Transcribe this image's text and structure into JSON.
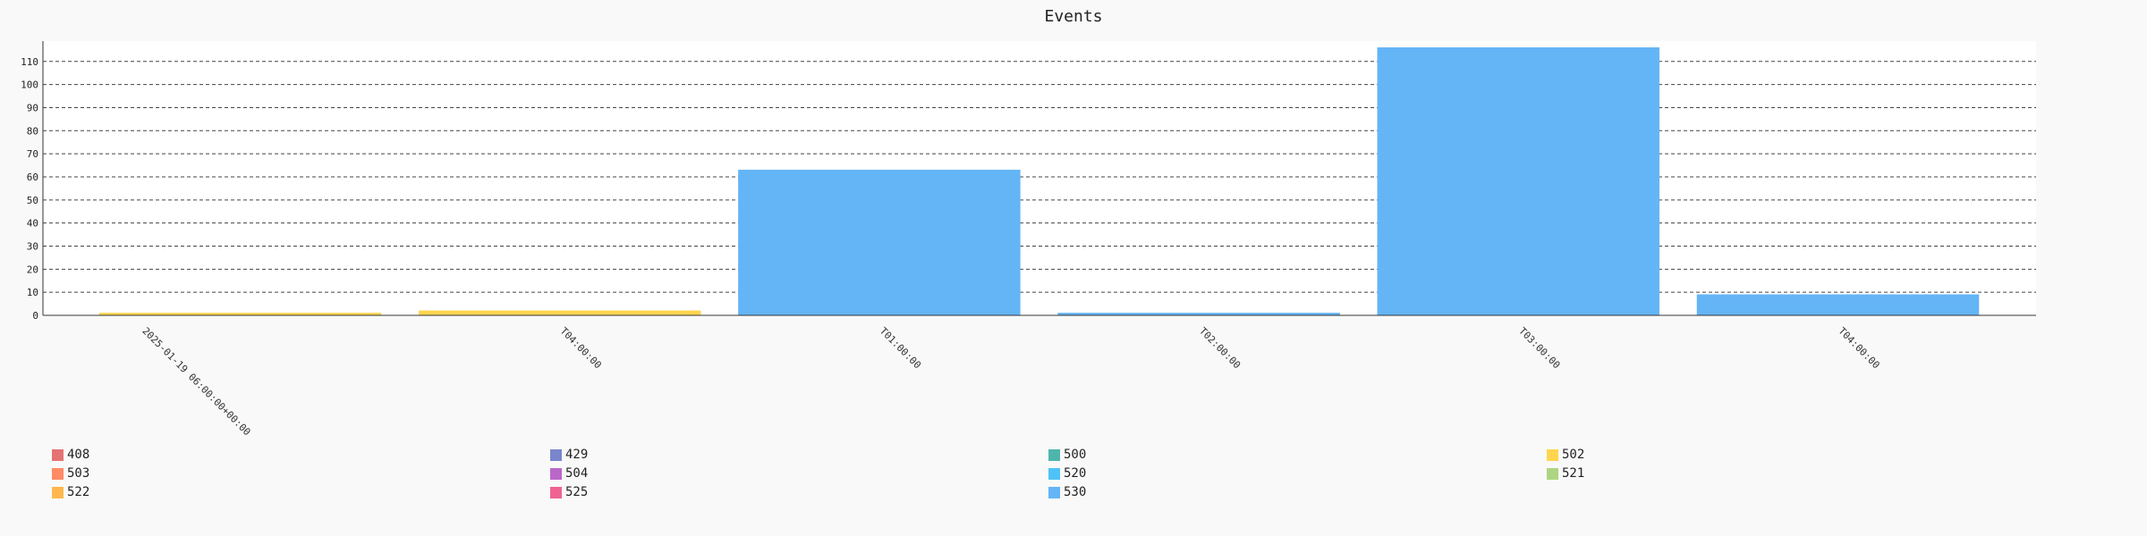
{
  "chart_data": {
    "type": "bar",
    "title": "Events",
    "xlabel": "",
    "ylabel": "",
    "categories": [
      "2025-01-19 06:00:00+00:00",
      "T04:00:00",
      "T01:00:00",
      "T02:00:00",
      "T03:00:00",
      "T04:00:00"
    ],
    "yticks": [
      0,
      10,
      20,
      30,
      40,
      50,
      60,
      70,
      80,
      90,
      100,
      110
    ],
    "ylim": [
      0,
      118
    ],
    "grid": true,
    "legend_position": "bottom",
    "series": [
      {
        "name": "408",
        "color": "#e57373",
        "values": [
          0,
          0,
          0,
          0,
          0,
          0
        ]
      },
      {
        "name": "429",
        "color": "#7986cb",
        "values": [
          0,
          0,
          0,
          0,
          0,
          0
        ]
      },
      {
        "name": "500",
        "color": "#4db6ac",
        "values": [
          0,
          0,
          0,
          0,
          0,
          0
        ]
      },
      {
        "name": "502",
        "color": "#ffd54f",
        "values": [
          1,
          2,
          0,
          0,
          0,
          0
        ]
      },
      {
        "name": "503",
        "color": "#ff8a65",
        "values": [
          0,
          0,
          0,
          0,
          0,
          0
        ]
      },
      {
        "name": "504",
        "color": "#ba68c8",
        "values": [
          0,
          0,
          0,
          0,
          0,
          0
        ]
      },
      {
        "name": "520",
        "color": "#4fc3f7",
        "values": [
          0,
          0,
          0,
          0,
          0,
          0
        ]
      },
      {
        "name": "521",
        "color": "#aed581",
        "values": [
          0,
          0,
          0,
          0,
          0,
          0
        ]
      },
      {
        "name": "522",
        "color": "#ffb74d",
        "values": [
          0,
          0,
          0,
          0,
          0,
          0
        ]
      },
      {
        "name": "525",
        "color": "#f06292",
        "values": [
          0,
          0,
          0,
          0,
          0,
          0
        ]
      },
      {
        "name": "530",
        "color": "#64b5f6",
        "values": [
          0,
          0,
          63,
          1,
          116,
          9
        ]
      }
    ]
  }
}
